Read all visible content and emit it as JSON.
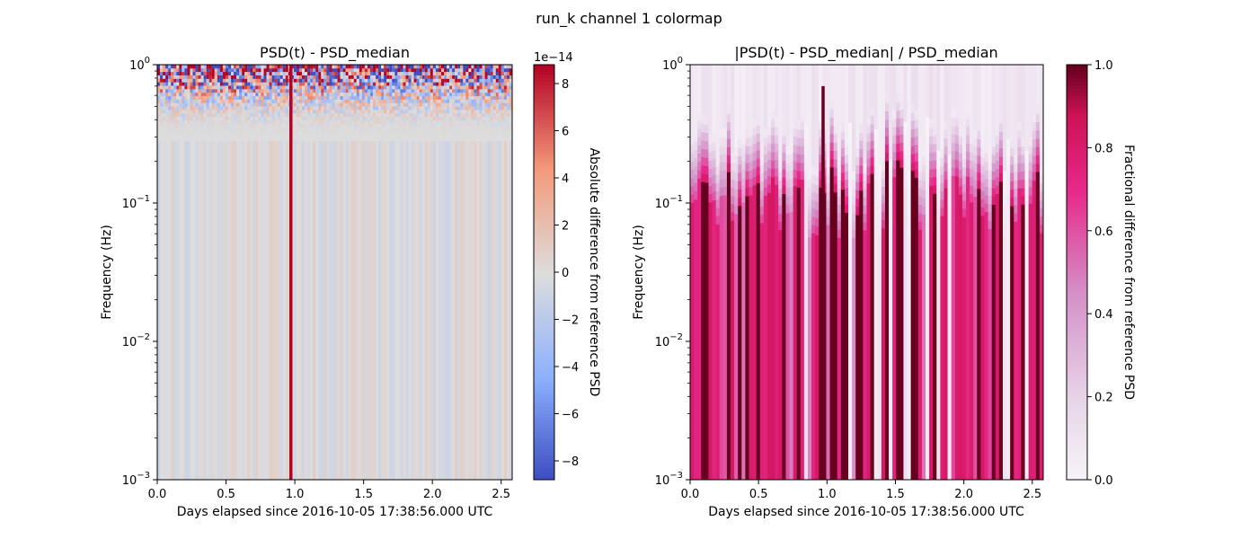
{
  "figure": {
    "suptitle": "run_k channel 1 colormap"
  },
  "chart_data": [
    {
      "type": "heatmap",
      "title": "PSD(t) - PSD_median",
      "xlabel": "Days elapsed since 2016-10-05 17:38:56.000 UTC",
      "ylabel": "Frequency (Hz)",
      "xlim": [
        0,
        2.58
      ],
      "ylim": [
        0.001,
        1
      ],
      "yscale": "log",
      "xticks": [
        "0.0",
        "0.5",
        "1.0",
        "1.5",
        "2.0",
        "2.5"
      ],
      "yticks": [
        {
          "base": "10",
          "exp": "−3"
        },
        {
          "base": "10",
          "exp": "−2"
        },
        {
          "base": "10",
          "exp": "−1"
        },
        {
          "base": "10",
          "exp": "0"
        }
      ],
      "colormap": "coolwarm",
      "colorbar": {
        "label": "Absolute difference from reference PSD",
        "range": [
          -8.8,
          8.8
        ],
        "ticks": [
          "−8",
          "−6",
          "−4",
          "−2",
          "0",
          "2",
          "4",
          "6",
          "8"
        ],
        "tick_values": [
          -8,
          -6,
          -4,
          -2,
          0,
          2,
          4,
          6,
          8
        ],
        "offset_text": "1e−14"
      },
      "notable_features": {
        "strong_positive_band_day": 0.97,
        "high_variance_above_hz": 0.4
      },
      "colors": {
        "low": "#3b4cc0",
        "mid": "#dddddd",
        "high": "#b40426"
      }
    },
    {
      "type": "heatmap",
      "title": "|PSD(t) - PSD_median| / PSD_median",
      "xlabel": "Days elapsed since 2016-10-05 17:38:56.000 UTC",
      "ylabel": "Frequency (Hz)",
      "xlim": [
        0,
        2.58
      ],
      "ylim": [
        0.001,
        1
      ],
      "yscale": "log",
      "xticks": [
        "0.0",
        "0.5",
        "1.0",
        "1.5",
        "2.0",
        "2.5"
      ],
      "yticks": [
        {
          "base": "10",
          "exp": "−3"
        },
        {
          "base": "10",
          "exp": "−2"
        },
        {
          "base": "10",
          "exp": "−1"
        },
        {
          "base": "10",
          "exp": "0"
        }
      ],
      "colormap": "PuRd",
      "colorbar": {
        "label": "Fractional difference from reference PSD",
        "range": [
          0,
          1
        ],
        "ticks": [
          "0.0",
          "0.2",
          "0.4",
          "0.6",
          "0.8",
          "1.0"
        ],
        "tick_values": [
          0,
          0.2,
          0.4,
          0.6,
          0.8,
          1.0
        ]
      },
      "colors": {
        "low": "#f7f4f9",
        "mid": "#e7298a",
        "high": "#67001f"
      }
    }
  ]
}
